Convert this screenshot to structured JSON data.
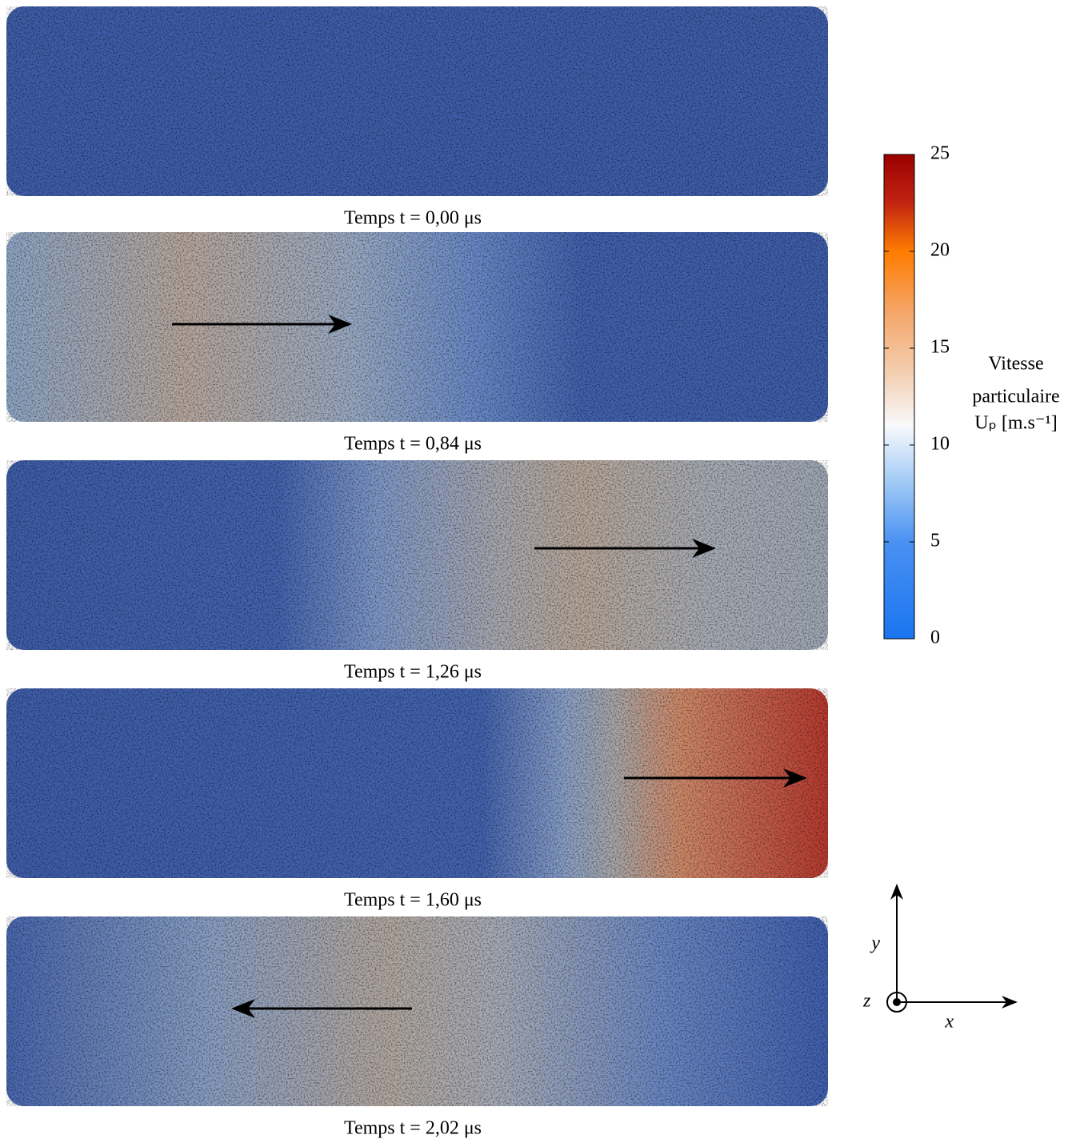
{
  "panels": [
    {
      "caption": "Temps t = 0,00 μs"
    },
    {
      "caption": "Temps t = 0,84 μs"
    },
    {
      "caption": "Temps t = 1,26 μs"
    },
    {
      "caption": "Temps t = 1,60 μs"
    },
    {
      "caption": "Temps t = 2,02 μs"
    }
  ],
  "colorbar": {
    "lim": [
      0,
      25
    ],
    "ticks": [
      0,
      5,
      10,
      15,
      20,
      25
    ],
    "title": [
      "Vitesse",
      "particulaire",
      "Uₚ [m.s⁻¹]"
    ]
  },
  "axes": {
    "y": "y⃗",
    "x": "x⃗",
    "z": "z⃗"
  }
}
